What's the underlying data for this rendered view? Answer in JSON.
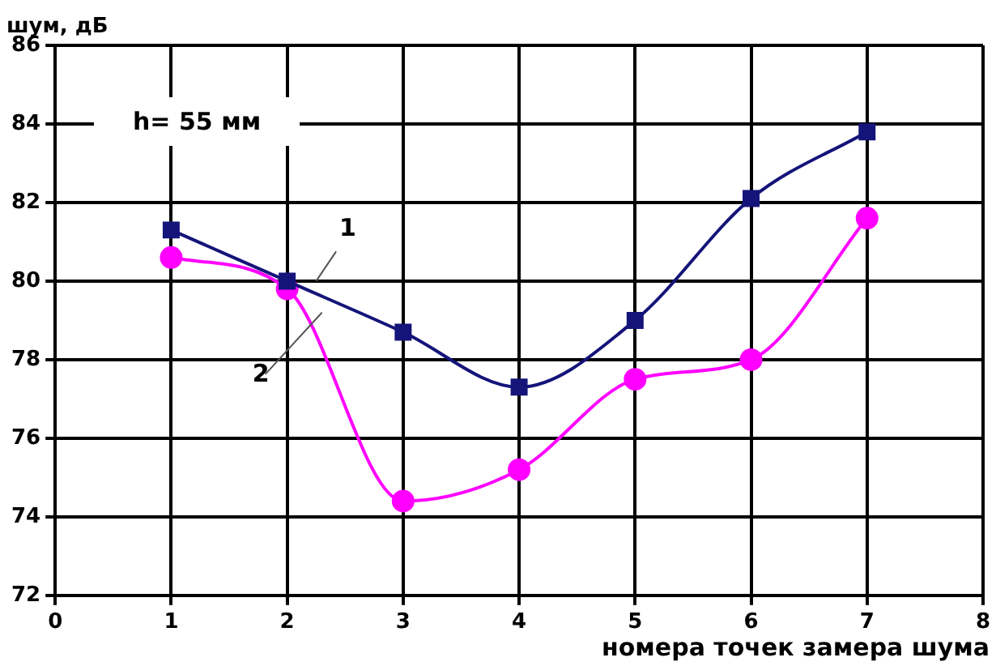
{
  "chart_data": {
    "type": "line",
    "ylabel": "шум, дБ",
    "xlabel": "номера точек замера шума",
    "annotations": [
      "h= 55 мм"
    ],
    "x": [
      1,
      2,
      3,
      4,
      5,
      6,
      7
    ],
    "series": [
      {
        "name": "1",
        "color": "#14147a",
        "marker": "square",
        "values": [
          81.3,
          80.0,
          78.7,
          77.3,
          79.0,
          82.1,
          83.8
        ]
      },
      {
        "name": "2",
        "color": "#ff00ff",
        "marker": "circle",
        "values": [
          80.6,
          79.8,
          74.4,
          75.2,
          77.5,
          78.0,
          81.6
        ]
      }
    ],
    "xlim": [
      0,
      8
    ],
    "xticks": [
      0,
      1,
      2,
      3,
      4,
      5,
      6,
      7,
      8
    ],
    "ylim": [
      72,
      86
    ],
    "yticks": [
      72,
      74,
      76,
      78,
      80,
      82,
      84,
      86
    ],
    "grid": true,
    "legend": false
  }
}
